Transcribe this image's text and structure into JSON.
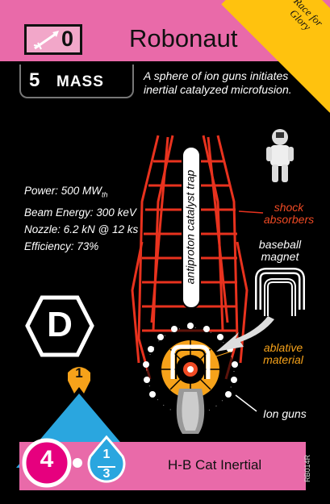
{
  "card": {
    "title": "Robonaut",
    "cost": "0",
    "corner_label": "Race for Glory",
    "mass_value": "5",
    "mass_label": "MASS",
    "description": "A sphere of ion guns initiates inertial catalyzed microfusion.",
    "stats": {
      "power_prefix": "Power: 500 MW",
      "power_sub": "th",
      "beam": "Beam Energy: 300 keV",
      "nozzle": "Nozzle: 6.2 kN @ 12 ks",
      "efficiency": "Efficiency: 73%"
    },
    "labels": {
      "trap": "antiproton catalyst trap",
      "shock": "shock absorbers",
      "magnet": "baseball magnet",
      "ablative": "ablative material",
      "ion_guns": "Ion guns"
    },
    "type_letter": "D",
    "thrust_badge": "1",
    "thrust_value": "4",
    "fuel_numerator": "1",
    "fuel_denominator": "3",
    "type_name": "H-B Cat Inertial",
    "serial": "RB014R"
  },
  "icons": [
    "rocket-icon",
    "astronaut-icon",
    "hexagon-d-icon",
    "mountain-icon",
    "drop-icon"
  ],
  "colors": {
    "header_pink": "#e96aa9",
    "corner_yellow": "#ffc20e",
    "frame_red": "#e8321e",
    "accent_orange": "#f6a21a",
    "mountain_blue": "#2aa6df",
    "thrust_magenta": "#e6007e"
  }
}
